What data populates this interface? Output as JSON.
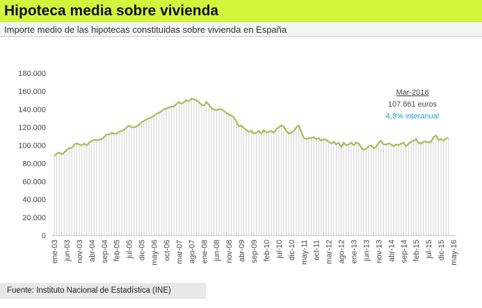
{
  "chart_data": {
    "type": "line",
    "title": "Hipoteca media sobre vivienda",
    "subtitle": "Importe medio de las hipotecas constituidas sobre vivienda en España",
    "source": "Fuente: Instituto Nacional de Estadística (INE)",
    "annotations": [
      "Mar-2016",
      "107.861 euros",
      "4,8% interanual"
    ],
    "color": "#a0bf55",
    "drop_color": "#d0d0d0",
    "categories": [
      "ene-03",
      null,
      null,
      null,
      null,
      "jun-03",
      null,
      null,
      null,
      null,
      "nov-03",
      null,
      null,
      null,
      null,
      "abr-04",
      null,
      null,
      null,
      null,
      "sep-04",
      null,
      null,
      null,
      null,
      "feb-05",
      null,
      null,
      null,
      null,
      "jul-05",
      null,
      null,
      null,
      null,
      "dic-05",
      null,
      null,
      null,
      null,
      "may-06",
      null,
      null,
      null,
      null,
      "oct-06",
      null,
      null,
      null,
      null,
      "mar-07",
      null,
      null,
      null,
      null,
      "ago-07",
      null,
      null,
      null,
      null,
      "ene-08",
      null,
      null,
      null,
      null,
      "jun-08",
      null,
      null,
      null,
      null,
      "nov-08",
      null,
      null,
      null,
      null,
      "abr-09",
      null,
      null,
      null,
      null,
      "sep-09",
      null,
      null,
      null,
      null,
      "feb-10",
      null,
      null,
      null,
      null,
      "jul-10",
      null,
      null,
      null,
      null,
      "dic-10",
      null,
      null,
      null,
      null,
      "may-11",
      null,
      null,
      null,
      null,
      "oct-11",
      null,
      null,
      null,
      null,
      "mar-12",
      null,
      null,
      null,
      null,
      "ago-12",
      null,
      null,
      null,
      null,
      "ene-13",
      null,
      null,
      null,
      null,
      "jun-13",
      null,
      null,
      null,
      null,
      "nov-13",
      null,
      null,
      null,
      null,
      "abr-14",
      null,
      null,
      null,
      null,
      "sep-14",
      null,
      null,
      null,
      null,
      "feb-15",
      null,
      null,
      null,
      null,
      "jul-15",
      null,
      null,
      null,
      null,
      "dic-15",
      null,
      null,
      null,
      null,
      "may-16"
    ],
    "values": [
      88000,
      91000,
      92000,
      90000,
      92000,
      95000,
      97000,
      97000,
      101000,
      102000,
      101000,
      100000,
      102000,
      100000,
      103000,
      105000,
      106000,
      106000,
      106000,
      107000,
      109000,
      112000,
      112000,
      114000,
      113000,
      113000,
      115000,
      116000,
      117000,
      120000,
      122000,
      120000,
      120000,
      121000,
      123000,
      126000,
      127000,
      129000,
      130000,
      131000,
      133000,
      135000,
      136000,
      138000,
      140000,
      141000,
      142000,
      143000,
      143000,
      146000,
      148000,
      146000,
      148000,
      150000,
      149000,
      152000,
      151000,
      150000,
      148000,
      145000,
      144000,
      148000,
      145000,
      141000,
      140000,
      139000,
      140000,
      140000,
      138000,
      136000,
      134000,
      133000,
      131000,
      126000,
      121000,
      122000,
      119000,
      117000,
      115000,
      116000,
      113000,
      114000,
      116000,
      113000,
      117000,
      114000,
      115000,
      116000,
      114000,
      118000,
      120000,
      122000,
      121000,
      116000,
      113000,
      114000,
      116000,
      120000,
      122000,
      115000,
      108000,
      107000,
      108000,
      108000,
      109000,
      107000,
      108000,
      105000,
      107000,
      106000,
      104000,
      102000,
      104000,
      101000,
      103000,
      98000,
      103000,
      100000,
      101000,
      103000,
      100000,
      103000,
      102000,
      98000,
      95000,
      96000,
      99000,
      100000,
      97000,
      98000,
      103000,
      105000,
      101000,
      101000,
      102000,
      101000,
      99000,
      101000,
      100000,
      102000,
      103000,
      99000,
      102000,
      104000,
      105000,
      107000,
      103000,
      102000,
      104000,
      104000,
      103000,
      104000,
      109000,
      111000,
      106000,
      107000,
      105000,
      108000,
      107861,
      null,
      null
    ],
    "ylim": [
      0,
      180000
    ],
    "yticks": [
      0,
      {
        "value": 20000,
        "label": "20.000"
      },
      {
        "value": 40000,
        "label": "40.000"
      },
      {
        "value": 60000,
        "label": "60.000"
      },
      {
        "value": 80000,
        "label": "80.000"
      },
      {
        "value": 100000,
        "label": "100.000"
      },
      {
        "value": 120000,
        "label": "120.000"
      },
      {
        "value": 140000,
        "label": "140.000"
      },
      {
        "value": 160000,
        "label": "160.000"
      },
      {
        "value": 180000,
        "label": "180.000"
      }
    ]
  }
}
